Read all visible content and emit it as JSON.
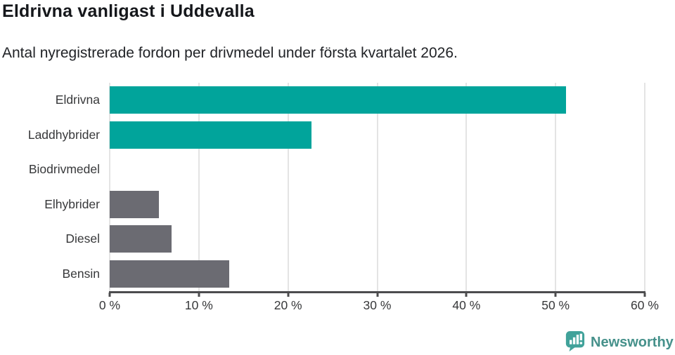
{
  "header": {
    "title": "Eldrivna vanligast i Uddevalla",
    "subtitle": "Antal nyregistrerade fordon per drivmedel under första kvartalet 2026."
  },
  "chart_data": {
    "type": "bar",
    "orientation": "horizontal",
    "title": "Eldrivna vanligast i Uddevalla",
    "subtitle": "Antal nyregistrerade fordon per drivmedel under första kvartalet 2026.",
    "categories": [
      "Eldrivna",
      "Laddhybrider",
      "Biodrivmedel",
      "Elhybrider",
      "Diesel",
      "Bensin"
    ],
    "values": [
      51.2,
      22.6,
      0,
      5.5,
      6.9,
      13.4
    ],
    "unit": "%",
    "xlim": [
      0,
      60
    ],
    "x_tick_values": [
      0,
      10,
      20,
      30,
      40,
      50,
      60
    ],
    "x_tick_labels": [
      "0 %",
      "10 %",
      "20 %",
      "30 %",
      "40 %",
      "50 %",
      "60 %"
    ],
    "grid": true,
    "legend": false,
    "bar_colors": [
      "#01a49b",
      "#01a49b",
      "#6b6b72",
      "#6b6b72",
      "#6b6b72",
      "#6b6b72"
    ],
    "highlight_color": "#01a49b",
    "default_color": "#6b6b72",
    "gridline_color": "#e4e4e4",
    "axis_color": "#4c4c4e"
  },
  "footer": {
    "brand": "Newsworthy",
    "brand_color": "#46918b",
    "logo_color": "#41a29a"
  }
}
